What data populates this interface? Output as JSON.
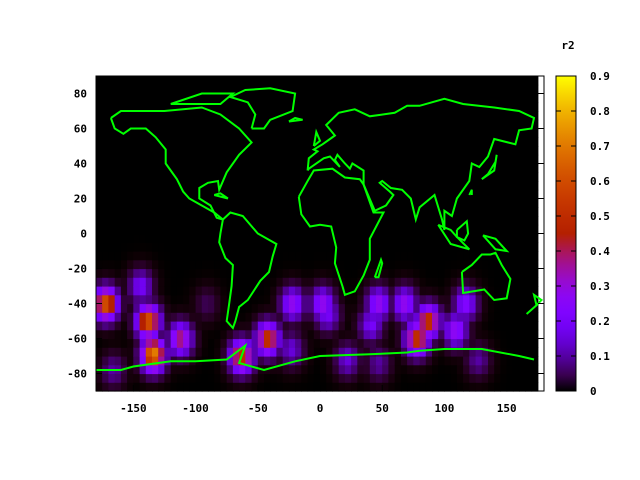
{
  "chart_data": {
    "type": "heatmap",
    "title": "",
    "xlabel": "",
    "ylabel": "",
    "xlim": [
      -180,
      180
    ],
    "ylim": [
      -90,
      90
    ],
    "x_ticks": [
      "-150",
      "-100",
      "-50",
      "0",
      "50",
      "100",
      "150"
    ],
    "x_tick_values": [
      -150,
      -100,
      -50,
      0,
      50,
      100,
      150
    ],
    "y_ticks": [
      "80",
      "60",
      "40",
      "20",
      "0",
      "-20",
      "-40",
      "-60",
      "-80"
    ],
    "y_tick_values": [
      80,
      60,
      40,
      20,
      0,
      -20,
      -40,
      -60,
      -80
    ],
    "colorbar": {
      "label": "r2",
      "range": [
        0,
        0.9
      ],
      "ticks": [
        "0",
        "0.1",
        "0.2",
        "0.3",
        "0.4",
        "0.5",
        "0.6",
        "0.7",
        "0.8",
        "0.9"
      ],
      "tick_values": [
        0,
        0.1,
        0.2,
        0.3,
        0.4,
        0.5,
        0.6,
        0.7,
        0.8,
        0.9
      ],
      "palette": "black-blue-red-yellow"
    },
    "overlay": "world coastlines",
    "overlay_color": "#00ff00",
    "background_color": "#000000",
    "hotspots": [
      {
        "lon": -172,
        "lat": -40,
        "r2": 0.65
      },
      {
        "lon": -138,
        "lat": -50,
        "r2": 0.65
      },
      {
        "lon": -134,
        "lat": -69,
        "r2": 0.75
      },
      {
        "lon": -112,
        "lat": -60,
        "r2": 0.4
      },
      {
        "lon": -144,
        "lat": -30,
        "r2": 0.2
      },
      {
        "lon": -91,
        "lat": -40,
        "r2": 0.05
      },
      {
        "lon": -63,
        "lat": -70,
        "r2": 0.55
      },
      {
        "lon": -42,
        "lat": -60,
        "r2": 0.55
      },
      {
        "lon": -22,
        "lat": -40,
        "r2": 0.3
      },
      {
        "lon": 2,
        "lat": -40,
        "r2": 0.3
      },
      {
        "lon": 6,
        "lat": -46,
        "r2": 0.2
      },
      {
        "lon": 41,
        "lat": -52,
        "r2": 0.2
      },
      {
        "lon": 47,
        "lat": -40,
        "r2": 0.3
      },
      {
        "lon": 68,
        "lat": -40,
        "r2": 0.3
      },
      {
        "lon": 87,
        "lat": -50,
        "r2": 0.55
      },
      {
        "lon": 78,
        "lat": -60,
        "r2": 0.55
      },
      {
        "lon": 109,
        "lat": -55,
        "r2": 0.3
      },
      {
        "lon": 117,
        "lat": -40,
        "r2": 0.25
      },
      {
        "lon": -23,
        "lat": -66,
        "r2": 0.15
      },
      {
        "lon": 22,
        "lat": -72,
        "r2": 0.15
      },
      {
        "lon": 47,
        "lat": -74,
        "r2": 0.1
      },
      {
        "lon": -166,
        "lat": -78,
        "r2": 0.1
      },
      {
        "lon": 127,
        "lat": -72,
        "r2": 0.1
      }
    ]
  }
}
